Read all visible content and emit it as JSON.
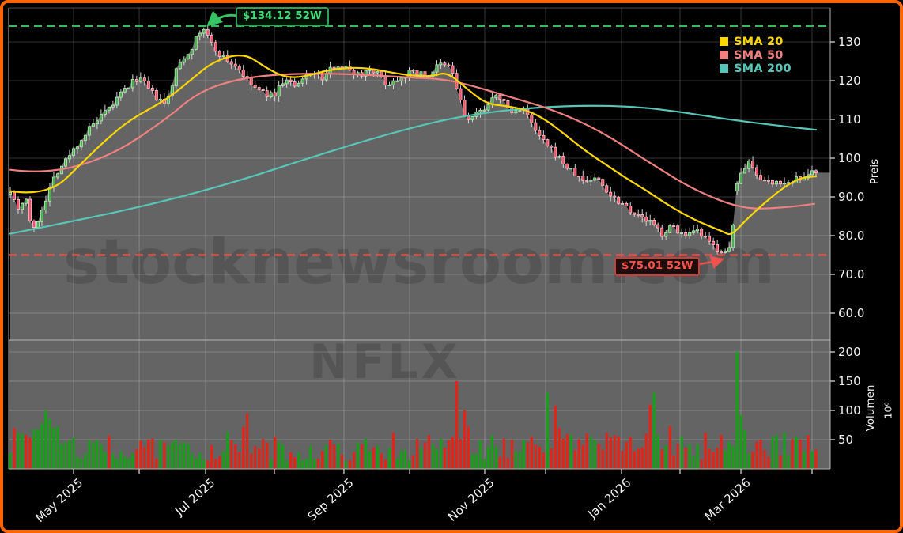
{
  "watermarks": {
    "site": "stocknewsroom.com",
    "symbol": "NFLX"
  },
  "chart_data": {
    "type": "candlestick",
    "symbol": "NFLX",
    "panels": [
      "price",
      "volume"
    ],
    "price_axis": {
      "label": "Preis",
      "range": [
        57,
        139
      ],
      "ticks": [
        {
          "value": 130,
          "label": "130"
        },
        {
          "value": 120,
          "label": "120"
        },
        {
          "value": 110,
          "label": "110"
        },
        {
          "value": 100,
          "label": "100"
        },
        {
          "value": 90,
          "label": "90.0"
        },
        {
          "value": 80,
          "label": "80.0"
        },
        {
          "value": 70,
          "label": "70.0"
        },
        {
          "value": 60,
          "label": "60.0"
        }
      ]
    },
    "volume_axis": {
      "label": "Volumen",
      "scale_label": "10⁶",
      "range": [
        0,
        220
      ],
      "ticks": [
        {
          "value": 200,
          "label": "200"
        },
        {
          "value": 150,
          "label": "150"
        },
        {
          "value": 100,
          "label": "100"
        },
        {
          "value": 50,
          "label": "50"
        }
      ]
    },
    "x_axis": {
      "ticks": [
        {
          "t": 0.0785,
          "label": "May 2025"
        },
        {
          "t": 0.16,
          "label": ""
        },
        {
          "t": 0.2424,
          "label": "Jul 2025"
        },
        {
          "t": 0.3278,
          "label": ""
        },
        {
          "t": 0.4141,
          "label": "Sep 2025"
        },
        {
          "t": 0.4956,
          "label": ""
        },
        {
          "t": 0.5888,
          "label": "Nov 2025"
        },
        {
          "t": 0.6644,
          "label": ""
        },
        {
          "t": 0.7586,
          "label": "Jan 2026"
        },
        {
          "t": 0.8312,
          "label": ""
        },
        {
          "t": 0.9068,
          "label": "Mar 2026"
        },
        {
          "t": 0.9951,
          "label": ""
        }
      ]
    },
    "legend": [
      {
        "label": "SMA 20",
        "color": "#ffd700"
      },
      {
        "label": "SMA 50",
        "color": "#f08080"
      },
      {
        "label": "SMA 200",
        "color": "#57c6b8"
      }
    ],
    "annotations": {
      "high": {
        "text": "$134.12 52W",
        "value": 134.12,
        "color": "#45db78",
        "border": "#2fa355",
        "line": "#3cb85c"
      },
      "low": {
        "text": "$75.01 52W",
        "value": 75.01,
        "color": "#f4544a",
        "border": "#cd3d35",
        "line": "#ef5350"
      }
    },
    "close_keypoints": [
      [
        0.0,
        92.0
      ],
      [
        0.009,
        87.0
      ],
      [
        0.019,
        90.0
      ],
      [
        0.028,
        80.5
      ],
      [
        0.041,
        88.0
      ],
      [
        0.056,
        96.0
      ],
      [
        0.071,
        100.0
      ],
      [
        0.085,
        104.0
      ],
      [
        0.1,
        108.0
      ],
      [
        0.12,
        112.0
      ],
      [
        0.139,
        117.0
      ],
      [
        0.159,
        121.0
      ],
      [
        0.179,
        116.0
      ],
      [
        0.193,
        113.5
      ],
      [
        0.208,
        124.0
      ],
      [
        0.223,
        128.0
      ],
      [
        0.237,
        133.0
      ],
      [
        0.24,
        133.5
      ],
      [
        0.252,
        128.5
      ],
      [
        0.267,
        125.5
      ],
      [
        0.282,
        123.5
      ],
      [
        0.296,
        119.5
      ],
      [
        0.311,
        117.0
      ],
      [
        0.326,
        116.0
      ],
      [
        0.341,
        120.5
      ],
      [
        0.355,
        118.0
      ],
      [
        0.372,
        122.5
      ],
      [
        0.388,
        120.5
      ],
      [
        0.404,
        124.5
      ],
      [
        0.419,
        123.0
      ],
      [
        0.434,
        121.5
      ],
      [
        0.448,
        123.5
      ],
      [
        0.468,
        119.0
      ],
      [
        0.488,
        121.5
      ],
      [
        0.502,
        122.5
      ],
      [
        0.517,
        121.0
      ],
      [
        0.532,
        124.0
      ],
      [
        0.547,
        123.5
      ],
      [
        0.554,
        118.0
      ],
      [
        0.566,
        109.5
      ],
      [
        0.581,
        111.5
      ],
      [
        0.594,
        114.5
      ],
      [
        0.607,
        116.0
      ],
      [
        0.623,
        111.5
      ],
      [
        0.635,
        113.5
      ],
      [
        0.65,
        107.5
      ],
      [
        0.664,
        103.5
      ],
      [
        0.679,
        100.5
      ],
      [
        0.694,
        97.0
      ],
      [
        0.712,
        94.0
      ],
      [
        0.728,
        95.0
      ],
      [
        0.745,
        90.5
      ],
      [
        0.763,
        88.0
      ],
      [
        0.779,
        85.0
      ],
      [
        0.794,
        83.5
      ],
      [
        0.809,
        80.5
      ],
      [
        0.823,
        82.5
      ],
      [
        0.838,
        79.5
      ],
      [
        0.853,
        81.0
      ],
      [
        0.868,
        78.0
      ],
      [
        0.882,
        75.8
      ],
      [
        0.889,
        75.3
      ],
      [
        0.895,
        77.0
      ],
      [
        0.901,
        93.0
      ],
      [
        0.91,
        97.5
      ],
      [
        0.918,
        99.0
      ],
      [
        0.927,
        96.0
      ],
      [
        0.939,
        93.5
      ],
      [
        0.951,
        94.5
      ],
      [
        0.963,
        93.0
      ],
      [
        0.975,
        95.0
      ],
      [
        0.986,
        94.5
      ],
      [
        1.0,
        97.0
      ]
    ],
    "series": [
      {
        "name": "SMA 20",
        "color": "#ffd700",
        "keypoints": [
          [
            0.0,
            91.5
          ],
          [
            0.046,
            90.0
          ],
          [
            0.095,
            100.0
          ],
          [
            0.12,
            105.0
          ],
          [
            0.149,
            110.0
          ],
          [
            0.193,
            115.0
          ],
          [
            0.223,
            120.0
          ],
          [
            0.252,
            125.0
          ],
          [
            0.29,
            127.2
          ],
          [
            0.316,
            123.5
          ],
          [
            0.341,
            120.8
          ],
          [
            0.365,
            121.0
          ],
          [
            0.399,
            123.0
          ],
          [
            0.439,
            123.5
          ],
          [
            0.488,
            121.5
          ],
          [
            0.522,
            121.0
          ],
          [
            0.542,
            122.3
          ],
          [
            0.566,
            118.0
          ],
          [
            0.591,
            114.0
          ],
          [
            0.615,
            113.5
          ],
          [
            0.64,
            112.5
          ],
          [
            0.664,
            110.0
          ],
          [
            0.689,
            106.0
          ],
          [
            0.713,
            102.0
          ],
          [
            0.738,
            98.5
          ],
          [
            0.763,
            95.0
          ],
          [
            0.787,
            92.0
          ],
          [
            0.812,
            88.5
          ],
          [
            0.836,
            85.5
          ],
          [
            0.861,
            83.0
          ],
          [
            0.885,
            81.0
          ],
          [
            0.895,
            80.0
          ],
          [
            0.915,
            84.5
          ],
          [
            0.949,
            90.8
          ],
          [
            0.978,
            94.9
          ],
          [
            1.0,
            95.3
          ]
        ]
      },
      {
        "name": "SMA 50",
        "color": "#f08080",
        "keypoints": [
          [
            0.0,
            97.0
          ],
          [
            0.046,
            95.8
          ],
          [
            0.125,
            100.5
          ],
          [
            0.193,
            110.0
          ],
          [
            0.233,
            117.0
          ],
          [
            0.282,
            120.5
          ],
          [
            0.341,
            121.8
          ],
          [
            0.419,
            121.8
          ],
          [
            0.497,
            120.8
          ],
          [
            0.547,
            120.3
          ],
          [
            0.625,
            115.5
          ],
          [
            0.674,
            112.5
          ],
          [
            0.733,
            107.0
          ],
          [
            0.792,
            99.0
          ],
          [
            0.851,
            91.5
          ],
          [
            0.91,
            86.8
          ],
          [
            0.959,
            87.2
          ],
          [
            0.998,
            88.2
          ]
        ]
      },
      {
        "name": "SMA 200",
        "color": "#57c6b8",
        "keypoints": [
          [
            0.0,
            80.5
          ],
          [
            0.085,
            84.0
          ],
          [
            0.184,
            88.5
          ],
          [
            0.282,
            94.0
          ],
          [
            0.37,
            100.0
          ],
          [
            0.448,
            105.0
          ],
          [
            0.537,
            110.0
          ],
          [
            0.615,
            112.5
          ],
          [
            0.694,
            113.6
          ],
          [
            0.772,
            113.4
          ],
          [
            0.831,
            112.0
          ],
          [
            0.89,
            110.0
          ],
          [
            0.949,
            108.5
          ],
          [
            1.0,
            107.3
          ]
        ]
      }
    ],
    "volume": {
      "unit": "millions",
      "base_keypoints": [
        [
          0,
          45
        ],
        [
          0.05,
          60
        ],
        [
          0.08,
          38
        ],
        [
          0.12,
          30
        ],
        [
          0.18,
          34
        ],
        [
          0.24,
          30
        ],
        [
          0.3,
          36
        ],
        [
          0.36,
          28
        ],
        [
          0.42,
          30
        ],
        [
          0.48,
          30
        ],
        [
          0.54,
          38
        ],
        [
          0.6,
          36
        ],
        [
          0.64,
          42
        ],
        [
          0.68,
          45
        ],
        [
          0.72,
          36
        ],
        [
          0.76,
          42
        ],
        [
          0.8,
          40
        ],
        [
          0.84,
          34
        ],
        [
          0.88,
          33
        ],
        [
          0.91,
          48
        ],
        [
          0.94,
          38
        ],
        [
          0.97,
          40
        ],
        [
          1,
          30
        ]
      ],
      "spikes": [
        [
          0.004,
          70,
          "r"
        ],
        [
          0.012,
          62,
          "g"
        ],
        [
          0.02,
          58,
          "r"
        ],
        [
          0.028,
          75,
          "r"
        ],
        [
          0.03,
          68,
          "g"
        ],
        [
          0.037,
          78,
          "g"
        ],
        [
          0.043,
          100,
          "g"
        ],
        [
          0.047,
          105,
          "g"
        ],
        [
          0.051,
          86,
          "g"
        ],
        [
          0.056,
          70,
          "g"
        ],
        [
          0.122,
          57,
          "r"
        ],
        [
          0.16,
          48,
          "r"
        ],
        [
          0.205,
          50,
          "g"
        ],
        [
          0.268,
          63,
          "g"
        ],
        [
          0.289,
          72,
          "r"
        ],
        [
          0.296,
          95,
          "r"
        ],
        [
          0.33,
          55,
          "r"
        ],
        [
          0.395,
          50,
          "r"
        ],
        [
          0.44,
          52,
          "g"
        ],
        [
          0.476,
          62,
          "r"
        ],
        [
          0.522,
          58,
          "r"
        ],
        [
          0.549,
          55,
          "r"
        ],
        [
          0.555,
          150,
          "r"
        ],
        [
          0.563,
          100,
          "r"
        ],
        [
          0.57,
          72,
          "r"
        ],
        [
          0.6,
          58,
          "g"
        ],
        [
          0.612,
          52,
          "r"
        ],
        [
          0.648,
          55,
          "r"
        ],
        [
          0.667,
          130,
          "g"
        ],
        [
          0.676,
          108,
          "r"
        ],
        [
          0.683,
          70,
          "r"
        ],
        [
          0.715,
          60,
          "r"
        ],
        [
          0.742,
          62,
          "r"
        ],
        [
          0.77,
          55,
          "r"
        ],
        [
          0.793,
          110,
          "r"
        ],
        [
          0.798,
          130,
          "g"
        ],
        [
          0.806,
          58,
          "g"
        ],
        [
          0.818,
          73,
          "r"
        ],
        [
          0.831,
          56,
          "g"
        ],
        [
          0.862,
          62,
          "r"
        ],
        [
          0.88,
          58,
          "r"
        ],
        [
          0.901,
          200,
          "g"
        ],
        [
          0.907,
          92,
          "g"
        ],
        [
          0.913,
          66,
          "g"
        ],
        [
          0.945,
          56,
          "g"
        ],
        [
          0.962,
          62,
          "g"
        ],
        [
          0.976,
          56,
          "g"
        ],
        [
          0.988,
          58,
          "r"
        ]
      ]
    },
    "style": {
      "background": "#000000",
      "frame": "#fd6500",
      "fill_area": "#646464",
      "up": "#4caf50",
      "up_edge": "#bde6bf",
      "down": "#ef5368",
      "down_edge": "#f7c3ca",
      "wick": "#d4d4d4",
      "vol_up": "#17a017",
      "vol_down": "#e42417",
      "grid": "rgba(255,255,255,0.27)",
      "spine": "#b5b5b5",
      "axis_text": "#f2f2f2",
      "watermark": "rgba(0,0,0,0.15)"
    }
  }
}
